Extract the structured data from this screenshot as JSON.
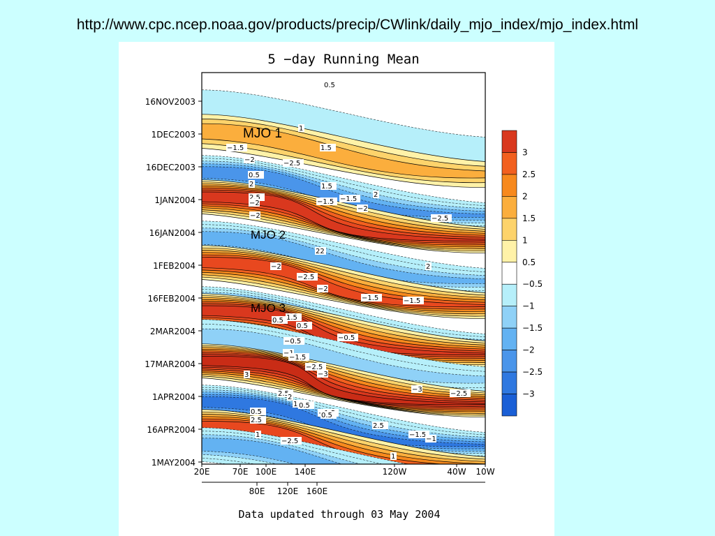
{
  "slide": {
    "url": "http://www.cpc.ncep.noaa.gov/products/precip/CWlink/daily_mjo_index/mjo_index.html",
    "colors": {
      "background": "#ccffff",
      "panel": "#ffffff"
    }
  },
  "chart_data": {
    "type": "heatmap",
    "title": "5 −day Running Mean",
    "footer": "Data updated through 03 May 2004",
    "y_ticks": [
      "16NOV2003",
      "1DEC2003",
      "16DEC2003",
      "1JAN2004",
      "16JAN2004",
      "1FEB2004",
      "16FEB2004",
      "2MAR2004",
      "17MAR2004",
      "1APR2004",
      "16APR2004",
      "1MAY2004"
    ],
    "x_ticks_top": [
      "20E",
      "70E",
      "100E",
      "140E",
      "120W",
      "40W",
      "10W"
    ],
    "x_ticks_bottom": [
      "80E",
      "120E",
      "160E"
    ],
    "colorbar": {
      "levels": [
        "3",
        "2.5",
        "2",
        "1.5",
        "1",
        "0.5",
        "−0.5",
        "−1",
        "−1.5",
        "−2",
        "−2.5",
        "−3"
      ],
      "colors": [
        "#d9381e",
        "#f2601f",
        "#f7891d",
        "#fbae3d",
        "#fdd36b",
        "#fff2a8",
        "#ffffff",
        "#b6effa",
        "#8fd1f7",
        "#63b2f2",
        "#4a95ea",
        "#2f78e0",
        "#1a5fd6"
      ]
    },
    "annotations": [
      {
        "label": "MJO 1",
        "period": "1DEC2003"
      },
      {
        "label": "MJO 2",
        "period": "16JAN2004"
      },
      {
        "label": "MJO 3",
        "period": "16FEB2004"
      }
    ],
    "contour_labels": [
      "0.5",
      "1",
      "1.5",
      "−1.5",
      "−2",
      "−2.5",
      "0.5",
      "2",
      "1.5",
      "2",
      "2.5",
      "−2",
      "−1.5",
      "−1.5",
      "−2",
      "−2",
      "−2.5",
      "22",
      "2",
      "−2",
      "−2.5",
      "−2",
      "−1.5",
      "−1.5",
      "0.5",
      "1.5",
      "0.5",
      "−0.5",
      "−0.5",
      "−1",
      "−1.5",
      "−2.5",
      "−3",
      "−3",
      "−2.5",
      "3",
      "2.5",
      "2",
      "1.5",
      "0.5",
      "−1.5",
      "0.5",
      "2.5",
      "2.5",
      "1",
      "−2.5",
      "−1.5",
      "−1",
      "1",
      "0.5"
    ],
    "bands": [
      {
        "sign": "neg",
        "level": 1,
        "period": "16NOV2003"
      },
      {
        "sign": "pos",
        "level": 3,
        "period": "1DEC2003"
      },
      {
        "sign": "neg",
        "level": 5,
        "period": "16DEC2003"
      },
      {
        "sign": "pos",
        "level": 7,
        "period": "1JAN2004"
      },
      {
        "sign": "neg",
        "level": 4,
        "period": "16JAN2004"
      },
      {
        "sign": "pos",
        "level": 6,
        "period": "1FEB2004"
      },
      {
        "sign": "neg",
        "level": 5,
        "period": "16FEB2004"
      },
      {
        "sign": "pos",
        "level": 7,
        "period": "16FEB2004"
      },
      {
        "sign": "neg",
        "level": 3,
        "period": "2MAR2004"
      },
      {
        "sign": "pos",
        "level": 8,
        "period": "17MAR2004"
      },
      {
        "sign": "neg",
        "level": 6,
        "period": "1APR2004"
      },
      {
        "sign": "pos",
        "level": 6,
        "period": "16APR2004"
      },
      {
        "sign": "neg",
        "level": 4,
        "period": "16APR2004"
      }
    ]
  }
}
